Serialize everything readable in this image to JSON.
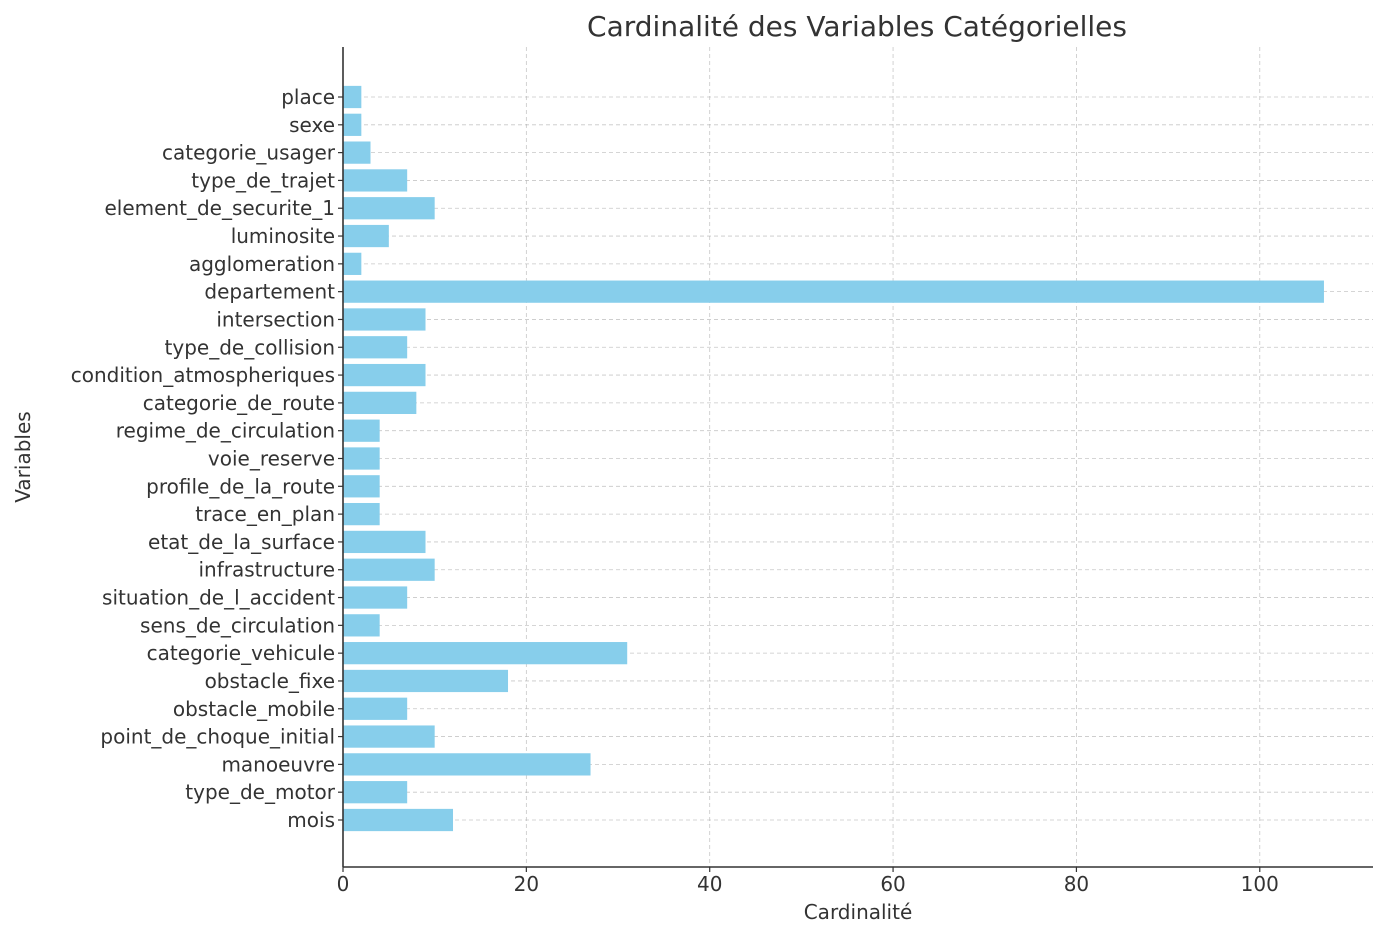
{
  "chart_data": {
    "type": "bar",
    "orientation": "horizontal",
    "title": "Cardinalité des Variables Catégorielles",
    "xlabel": "Cardinalité",
    "ylabel": "Variables",
    "categories": [
      "place",
      "sexe",
      "categorie_usager",
      "type_de_trajet",
      "element_de_securite_1",
      "luminosite",
      "agglomeration",
      "departement",
      "intersection",
      "type_de_collision",
      "condition_atmospheriques",
      "categorie_de_route",
      "regime_de_circulation",
      "voie_reserve",
      "profile_de_la_route",
      "trace_en_plan",
      "etat_de_la_surface",
      "infrastructure",
      "situation_de_l_accident",
      "sens_de_circulation",
      "categorie_vehicule",
      "obstacle_fixe",
      "obstacle_mobile",
      "point_de_choque_initial",
      "manoeuvre",
      "type_de_motor",
      "mois"
    ],
    "values": [
      2,
      2,
      3,
      7,
      10,
      5,
      2,
      107,
      9,
      7,
      9,
      8,
      4,
      4,
      4,
      4,
      9,
      10,
      7,
      4,
      31,
      18,
      7,
      10,
      27,
      7,
      12
    ],
    "xlim": [
      0,
      112.35
    ],
    "xticks": [
      0,
      20,
      40,
      60,
      80,
      100
    ],
    "grid": true,
    "bar_color": "#87ceeb",
    "grid_color": "#b0b0b0",
    "text_color": "#333333"
  }
}
